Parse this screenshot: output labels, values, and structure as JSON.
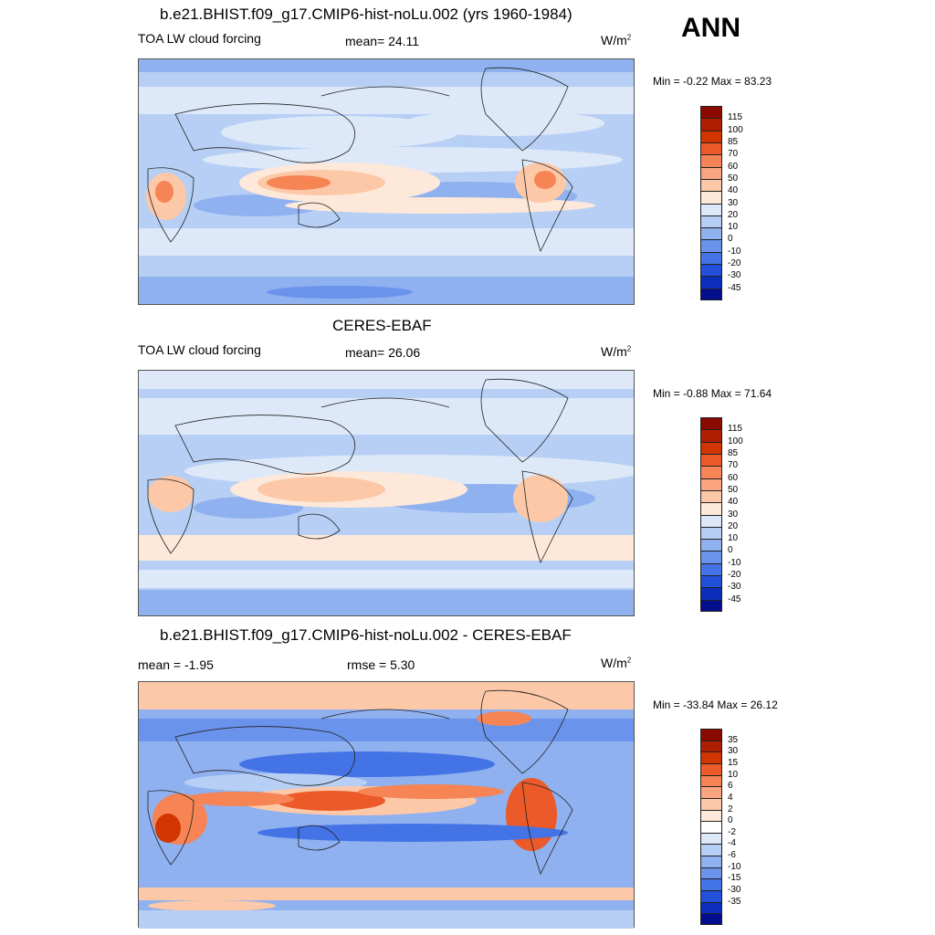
{
  "header": {
    "season": "ANN"
  },
  "panels": [
    {
      "title": "b.e21.BHIST.f09_g17.CMIP6-hist-noLu.002 (yrs 1960-1984)",
      "left_label": "TOA LW cloud forcing",
      "center_label": "mean=  24.11",
      "units_base": "W/m",
      "units_exp": "2",
      "minmax": "Min =  -0.22 Max =  83.23",
      "colorbar": {
        "colors": [
          "#8b0a00",
          "#b01e00",
          "#d23600",
          "#eb5a28",
          "#f68455",
          "#fba580",
          "#fcc8a8",
          "#fde8d9",
          "#dde9f8",
          "#b7cff4",
          "#8fb1f0",
          "#6a93ec",
          "#4473e6",
          "#2350d8",
          "#0b2fba",
          "#030e8c"
        ],
        "labels": [
          "115",
          "100",
          "85",
          "70",
          "60",
          "50",
          "40",
          "30",
          "20",
          "10",
          "0",
          "-10",
          "-20",
          "-30",
          "-45"
        ]
      }
    },
    {
      "title": "CERES-EBAF",
      "left_label": "TOA LW cloud forcing",
      "center_label": "mean=  26.06",
      "units_base": "W/m",
      "units_exp": "2",
      "minmax": "Min =  -0.88 Max =  71.64",
      "colorbar": {
        "colors": [
          "#8b0a00",
          "#b01e00",
          "#d23600",
          "#eb5a28",
          "#f68455",
          "#fba580",
          "#fcc8a8",
          "#fde8d9",
          "#dde9f8",
          "#b7cff4",
          "#8fb1f0",
          "#6a93ec",
          "#4473e6",
          "#2350d8",
          "#0b2fba",
          "#030e8c"
        ],
        "labels": [
          "115",
          "100",
          "85",
          "70",
          "60",
          "50",
          "40",
          "30",
          "20",
          "10",
          "0",
          "-10",
          "-20",
          "-30",
          "-45"
        ]
      }
    },
    {
      "title": "b.e21.BHIST.f09_g17.CMIP6-hist-noLu.002 - CERES-EBAF",
      "left_label": "mean =  -1.95",
      "center_label": "rmse =   5.30",
      "units_base": "W/m",
      "units_exp": "2",
      "minmax": "Min = -33.84 Max =  26.12",
      "colorbar": {
        "colors": [
          "#8b0a00",
          "#b01e00",
          "#d23600",
          "#eb5a28",
          "#f68455",
          "#fba580",
          "#fcc8a8",
          "#fde8d9",
          "#ffffff",
          "#dde9f8",
          "#b7cff4",
          "#8fb1f0",
          "#6a93ec",
          "#4473e6",
          "#2350d8",
          "#0b2fba",
          "#030e8c"
        ],
        "labels": [
          "35",
          "30",
          "15",
          "10",
          "6",
          "4",
          "2",
          "0",
          "-2",
          "-4",
          "-6",
          "-10",
          "-15",
          "-30",
          "-35"
        ]
      }
    }
  ]
}
